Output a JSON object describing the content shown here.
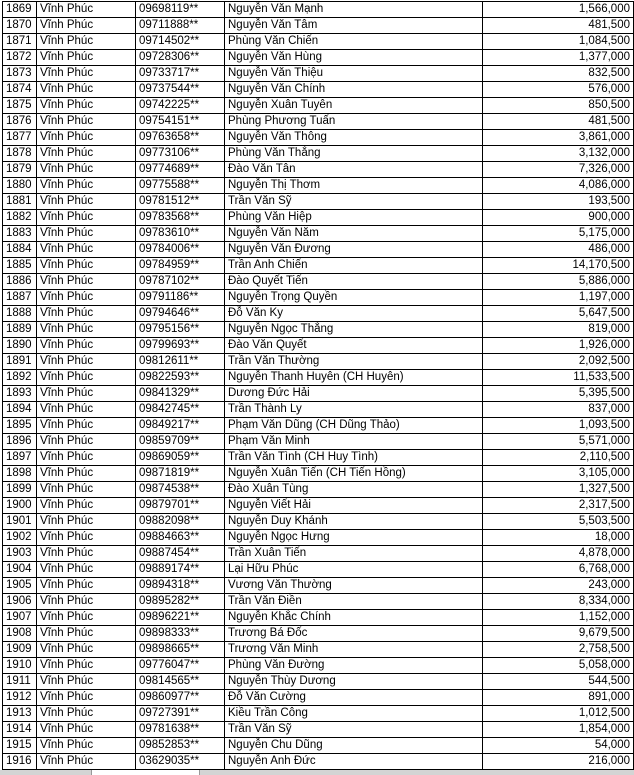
{
  "rows": [
    [
      "1869",
      "Vĩnh Phúc",
      "09698119**",
      "Nguyễn Văn Mạnh",
      "1,566,000"
    ],
    [
      "1870",
      "Vĩnh Phúc",
      "09711888**",
      "Nguyễn Văn Tâm",
      "481,500"
    ],
    [
      "1871",
      "Vĩnh Phúc",
      "09714502**",
      "Phùng Văn Chiến",
      "1,084,500"
    ],
    [
      "1872",
      "Vĩnh Phúc",
      "09728306**",
      "Nguyễn Văn Hùng",
      "1,377,000"
    ],
    [
      "1873",
      "Vĩnh Phúc",
      "09733717**",
      "Nguyễn Văn Thiệu",
      "832,500"
    ],
    [
      "1874",
      "Vĩnh Phúc",
      "09737544**",
      "Nguyễn Văn Chính",
      "576,000"
    ],
    [
      "1875",
      "Vĩnh Phúc",
      "09742225**",
      "Nguyễn Xuân Tuyên",
      "850,500"
    ],
    [
      "1876",
      "Vĩnh Phúc",
      "09754151**",
      "Phùng Phương Tuấn",
      "481,500"
    ],
    [
      "1877",
      "Vĩnh Phúc",
      "09763658**",
      "Nguyễn Văn Thông",
      "3,861,000"
    ],
    [
      "1878",
      "Vĩnh Phúc",
      "09773106**",
      "Phùng Văn Thắng",
      "3,132,000"
    ],
    [
      "1879",
      "Vĩnh Phúc",
      "09774689**",
      "Đào Văn Tân",
      "7,326,000"
    ],
    [
      "1880",
      "Vĩnh Phúc",
      "09775588**",
      "Nguyễn Thị Thơm",
      "4,086,000"
    ],
    [
      "1881",
      "Vĩnh Phúc",
      "09781512**",
      "Trần Văn Sỹ",
      "193,500"
    ],
    [
      "1882",
      "Vĩnh Phúc",
      "09783568**",
      "Phùng Văn Hiệp",
      "900,000"
    ],
    [
      "1883",
      "Vĩnh Phúc",
      "09783610**",
      "Nguyễn Văn Năm",
      "5,175,000"
    ],
    [
      "1884",
      "Vĩnh Phúc",
      "09784006**",
      "Nguyễn Văn  Đương",
      "486,000"
    ],
    [
      "1885",
      "Vĩnh Phúc",
      "09784959**",
      "Trần Anh Chiến",
      "14,170,500"
    ],
    [
      "1886",
      "Vĩnh Phúc",
      "09787102**",
      "Đào Quyết Tiến",
      "5,886,000"
    ],
    [
      "1887",
      "Vĩnh Phúc",
      "09791186**",
      "Nguyễn Trọng Quyền",
      "1,197,000"
    ],
    [
      "1888",
      "Vĩnh Phúc",
      "09794646**",
      "Đỗ Văn Ky",
      "5,647,500"
    ],
    [
      "1889",
      "Vĩnh Phúc",
      "09795156**",
      "Nguyễn  Ngọc Thắng",
      "819,000"
    ],
    [
      "1890",
      "Vĩnh Phúc",
      "09799693**",
      "Đào Văn Quyết",
      "1,926,000"
    ],
    [
      "1891",
      "Vĩnh Phúc",
      "09812611**",
      "Trần Văn Thường",
      "2,092,500"
    ],
    [
      "1892",
      "Vĩnh Phúc",
      "09822593**",
      "Nguyễn Thanh Huyên (CH Huyên)",
      "11,533,500"
    ],
    [
      "1893",
      "Vĩnh Phúc",
      "09841329**",
      "Dương Đức Hải",
      "5,395,500"
    ],
    [
      "1894",
      "Vĩnh Phúc",
      "09842745**",
      "Trần Thành Ly",
      "837,000"
    ],
    [
      "1895",
      "Vĩnh Phúc",
      "09849217**",
      "Phạm Văn Dũng (CH Dũng Thảo)",
      "1,093,500"
    ],
    [
      "1896",
      "Vĩnh Phúc",
      "09859709**",
      "Phạm  Văn Minh",
      "5,571,000"
    ],
    [
      "1897",
      "Vĩnh Phúc",
      "09869059**",
      "Trần Văn Tình (CH Huy Tình)",
      "2,110,500"
    ],
    [
      "1898",
      "Vĩnh Phúc",
      "09871819**",
      "Nguyễn Xuân Tiến (CH Tiến Hồng)",
      "3,105,000"
    ],
    [
      "1899",
      "Vĩnh Phúc",
      "09874538**",
      "Đào Xuân Tùng",
      "1,327,500"
    ],
    [
      "1900",
      "Vĩnh Phúc",
      "09879701**",
      "Nguyễn Viết Hải",
      "2,317,500"
    ],
    [
      "1901",
      "Vĩnh Phúc",
      "09882098**",
      "Nguyễn Duy  Khánh",
      "5,503,500"
    ],
    [
      "1902",
      "Vĩnh Phúc",
      "09884663**",
      "Nguyễn Ngọc Hưng",
      "18,000"
    ],
    [
      "1903",
      "Vĩnh Phúc",
      "09887454**",
      "Trần Xuân Tiến",
      "4,878,000"
    ],
    [
      "1904",
      "Vĩnh Phúc",
      "09889174**",
      "Lại Hữu Phúc",
      "6,768,000"
    ],
    [
      "1905",
      "Vĩnh Phúc",
      "09894318**",
      "Vương Văn Thường",
      "243,000"
    ],
    [
      "1906",
      "Vĩnh Phúc",
      "09895282**",
      "Trần Văn Điền",
      "8,334,000"
    ],
    [
      "1907",
      "Vĩnh Phúc",
      "09896221**",
      "Nguyễn Khắc Chính",
      "1,152,000"
    ],
    [
      "1908",
      "Vĩnh Phúc",
      "09898333**",
      "Trương Bá Đốc",
      "9,679,500"
    ],
    [
      "1909",
      "Vĩnh Phúc",
      "09898665**",
      "Trương Văn Minh",
      "2,758,500"
    ],
    [
      "1910",
      "Vĩnh Phúc",
      "09776047**",
      "Phùng Văn Đường",
      "5,058,000"
    ],
    [
      "1911",
      "Vĩnh Phúc",
      "09814565**",
      "Nguyễn Thùy Dương",
      "544,500"
    ],
    [
      "1912",
      "Vĩnh Phúc",
      "09860977**",
      "Đỗ Văn Cường",
      "891,000"
    ],
    [
      "1913",
      "Vĩnh Phúc",
      "09727391**",
      "Kiều Trần Công",
      "1,012,500"
    ],
    [
      "1914",
      "Vĩnh Phúc",
      "09781638**",
      "Trần Văn Sỹ",
      "1,854,000"
    ],
    [
      "1915",
      "Vĩnh Phúc",
      "09852853**",
      "Nguyễn Chu Dũng",
      "54,000"
    ],
    [
      "1916",
      "Vĩnh Phúc",
      "03629035**",
      "Nguyễn Anh Đức",
      "216,000"
    ]
  ]
}
